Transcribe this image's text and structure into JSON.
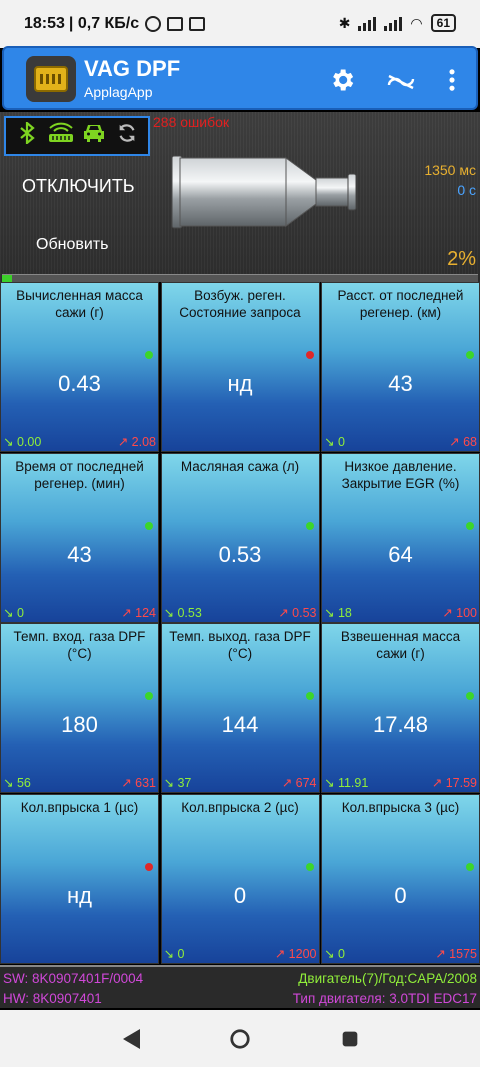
{
  "status_bar": {
    "time": "18:53",
    "speed": "| 0,7 КБ/с",
    "battery": "61"
  },
  "app": {
    "title": "VAG DPF",
    "subtitle": "ApplagApp"
  },
  "header": {
    "errors": "288 ошибок",
    "disconnect_label": "ОТКЛЮЧИТЬ",
    "refresh_label": "Обновить",
    "time_ms": "1350 мс",
    "time_s": "0 с",
    "percent": "2%",
    "progress": 0.02
  },
  "cells": [
    {
      "title": "Вычисленная масса сажи (г)",
      "value": "0.43",
      "min": "↘ 0.00",
      "max": "↗ 2.08",
      "dot": "#3cd62a"
    },
    {
      "title": "Возбуж. реген. Состояние запроса",
      "value": "нд",
      "min": "",
      "max": "",
      "dot": "#e02828"
    },
    {
      "title": "Расст. от последней регенер. (км)",
      "value": "43",
      "min": "↘ 0",
      "max": "↗ 68",
      "dot": "#3cd62a"
    },
    {
      "title": "Время от последней регенер. (мин)",
      "value": "43",
      "min": "↘ 0",
      "max": "↗ 124",
      "dot": "#3cd62a"
    },
    {
      "title": "Масляная сажа (л)",
      "value": "0.53",
      "min": "↘ 0.53",
      "max": "↗ 0.53",
      "dot": "#3cd62a"
    },
    {
      "title": "Низкое давление. Закрытие EGR (%)",
      "value": "64",
      "min": "↘ 18",
      "max": "↗ 100",
      "dot": "#3cd62a"
    },
    {
      "title": "Темп. вход. газа DPF (°C)",
      "value": "180",
      "min": "↘ 56",
      "max": "↗ 631",
      "dot": "#3cd62a"
    },
    {
      "title": "Темп. выход. газа DPF (°C)",
      "value": "144",
      "min": "↘ 37",
      "max": "↗ 674",
      "dot": "#3cd62a"
    },
    {
      "title": "Взвешенная масса сажи (г)",
      "value": "17.48",
      "min": "↘ 11.91",
      "max": "↗ 17.59",
      "dot": "#3cd62a"
    },
    {
      "title": "Кол.впрыска 1 (µс)",
      "value": "нд",
      "min": "",
      "max": "",
      "dot": "#e02828"
    },
    {
      "title": "Кол.впрыска 2 (µс)",
      "value": "0",
      "min": "↘ 0",
      "max": "↗ 1200",
      "dot": "#3cd62a"
    },
    {
      "title": "Кол.впрыска 3 (µс)",
      "value": "0",
      "min": "↘ 0",
      "max": "↗ 1575",
      "dot": "#3cd62a"
    }
  ],
  "footer": {
    "sw": "SW: 8K0907401F/0004",
    "hw": "HW: 8K0907401",
    "engine": "Двигатель(7)/Год:CAPA/2008",
    "engine_type": "Тип двигателя: 3.0TDI EDC17"
  },
  "icons": [
    "bluetooth-icon",
    "obd-adapter-icon",
    "car-icon",
    "sync-icon",
    "gear-icon",
    "connection-icon",
    "more-vert-icon",
    "back-icon",
    "home-icon",
    "recents-icon"
  ]
}
